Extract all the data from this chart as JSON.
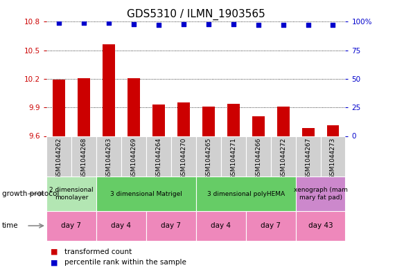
{
  "title": "GDS5310 / ILMN_1903565",
  "samples": [
    "GSM1044262",
    "GSM1044268",
    "GSM1044263",
    "GSM1044269",
    "GSM1044264",
    "GSM1044270",
    "GSM1044265",
    "GSM1044271",
    "GSM1044266",
    "GSM1044272",
    "GSM1044267",
    "GSM1044273"
  ],
  "bar_values": [
    10.19,
    10.21,
    10.56,
    10.21,
    9.93,
    9.95,
    9.91,
    9.94,
    9.81,
    9.91,
    9.68,
    9.71
  ],
  "dot_values": [
    99,
    99,
    99,
    98,
    97,
    98,
    98,
    98,
    97,
    97,
    97,
    97
  ],
  "ymin": 9.6,
  "ymax": 10.8,
  "yticks": [
    9.6,
    9.9,
    10.2,
    10.5,
    10.8
  ],
  "y2min": 0,
  "y2max": 100,
  "y2ticks": [
    0,
    25,
    50,
    75,
    100
  ],
  "bar_color": "#cc0000",
  "dot_color": "#0000cc",
  "bar_bottom": 9.6,
  "protocol_data": [
    {
      "label": "2 dimensional\nmonolayer",
      "start": 0,
      "end": 2,
      "color": "#b3e6b3"
    },
    {
      "label": "3 dimensional Matrigel",
      "start": 2,
      "end": 6,
      "color": "#66cc66"
    },
    {
      "label": "3 dimensional polyHEMA",
      "start": 6,
      "end": 10,
      "color": "#66cc66"
    },
    {
      "label": "xenograph (mam\nmary fat pad)",
      "start": 10,
      "end": 12,
      "color": "#cc88cc"
    }
  ],
  "time_data": [
    {
      "label": "day 7",
      "start": 0,
      "end": 2
    },
    {
      "label": "day 4",
      "start": 2,
      "end": 4
    },
    {
      "label": "day 7",
      "start": 4,
      "end": 6
    },
    {
      "label": "day 4",
      "start": 6,
      "end": 8
    },
    {
      "label": "day 7",
      "start": 8,
      "end": 10
    },
    {
      "label": "day 43",
      "start": 10,
      "end": 12
    }
  ],
  "time_color": "#ee88bb",
  "growth_protocol_label": "growth protocol",
  "time_label": "time",
  "legend_bar": "transformed count",
  "legend_dot": "percentile rank within the sample",
  "title_fontsize": 11,
  "tick_label_fontsize": 7.5,
  "sample_fontsize": 6.5
}
